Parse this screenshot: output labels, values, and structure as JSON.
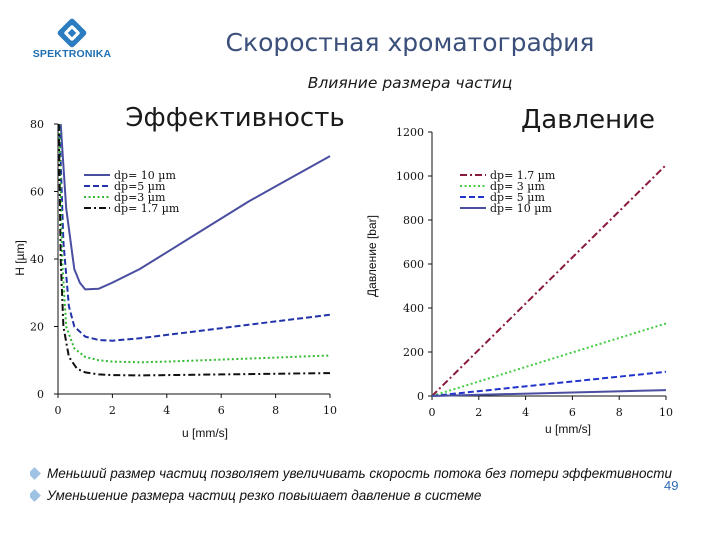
{
  "header": {
    "logo_text": "SPEKTRONIKA",
    "title": "Скоростная хроматография",
    "subtitle": "Влияние размера частиц"
  },
  "chart_data": [
    {
      "type": "line",
      "title": "Эффективность",
      "xlabel": "u [mm/s]",
      "ylabel": "H [µm]",
      "xlim": [
        0,
        10
      ],
      "ylim": [
        0,
        80
      ],
      "xticks": [
        "0",
        "2",
        "4",
        "6",
        "8",
        "10"
      ],
      "yticks": [
        "0",
        "20",
        "40",
        "60",
        "80"
      ],
      "legend_position": "upper-left",
      "series": [
        {
          "name": "dp= 10 µm",
          "color": "#4a4ea0",
          "style": "solid",
          "x": [
            0.1,
            0.3,
            0.6,
            0.8,
            1.0,
            1.5,
            2,
            3,
            4,
            5,
            6,
            7,
            8,
            9,
            10
          ],
          "y": [
            80,
            55,
            37,
            33,
            31,
            31.2,
            33,
            37,
            42,
            47,
            52,
            57,
            61.5,
            66,
            70.5
          ]
        },
        {
          "name": "dp=5 µm",
          "color": "#2233aa",
          "style": "dashed",
          "x": [
            0.05,
            0.2,
            0.4,
            0.6,
            1.0,
            1.5,
            2,
            3,
            4,
            5,
            6,
            7,
            8,
            9,
            10
          ],
          "y": [
            80,
            45,
            26,
            20,
            17,
            16,
            15.8,
            16.5,
            17.5,
            18.5,
            19.5,
            20.5,
            21.5,
            22.5,
            23.5
          ]
        },
        {
          "name": "dp=3 µm",
          "color": "#33bb33",
          "style": "dotted",
          "x": [
            0.05,
            0.15,
            0.3,
            0.6,
            1.0,
            1.5,
            2,
            3,
            4,
            5,
            6,
            7,
            8,
            9,
            10
          ],
          "y": [
            80,
            40,
            20,
            13.5,
            11,
            10,
            9.6,
            9.4,
            9.6,
            9.9,
            10.2,
            10.5,
            10.8,
            11.1,
            11.4
          ]
        },
        {
          "name": "dp= 1.7 µm",
          "color": "#111111",
          "style": "dashdot",
          "x": [
            0.03,
            0.1,
            0.2,
            0.4,
            0.7,
            1.0,
            1.5,
            2,
            3,
            4,
            5,
            6,
            7,
            8,
            9,
            10
          ],
          "y": [
            80,
            40,
            20,
            11,
            7.5,
            6.4,
            5.8,
            5.6,
            5.5,
            5.6,
            5.7,
            5.8,
            5.9,
            6.0,
            6.1,
            6.2
          ]
        }
      ]
    },
    {
      "type": "line",
      "title": "Давление",
      "xlabel": "u [mm/s]",
      "ylabel": "Давление [bar]",
      "xlim": [
        0,
        10
      ],
      "ylim": [
        0,
        1200
      ],
      "xticks": [
        "0",
        "2",
        "4",
        "6",
        "8",
        "10"
      ],
      "yticks": [
        "0",
        "200",
        "400",
        "600",
        "800",
        "1000",
        "1200"
      ],
      "legend_position": "upper-right",
      "series": [
        {
          "name": "dp= 1.7 µm",
          "color": "#8a1a3a",
          "style": "dashdot",
          "x": [
            0,
            10
          ],
          "y": [
            0,
            1050
          ]
        },
        {
          "name": "dp= 3 µm",
          "color": "#44cc44",
          "style": "dotted",
          "x": [
            0,
            10
          ],
          "y": [
            0,
            330
          ]
        },
        {
          "name": "dp= 5 µm",
          "color": "#2233cc",
          "style": "dashed",
          "x": [
            0,
            10
          ],
          "y": [
            0,
            110
          ]
        },
        {
          "name": "dp= 10 µm",
          "color": "#4a4ea0",
          "style": "solid",
          "x": [
            0,
            10
          ],
          "y": [
            0,
            27
          ]
        }
      ]
    }
  ],
  "bullets": [
    "Меньший размер частиц позволяет увеличивать скорость потока без потери эффективности",
    "Уменьшение размера частиц резко повышает давление в системе"
  ],
  "page_number": "49"
}
